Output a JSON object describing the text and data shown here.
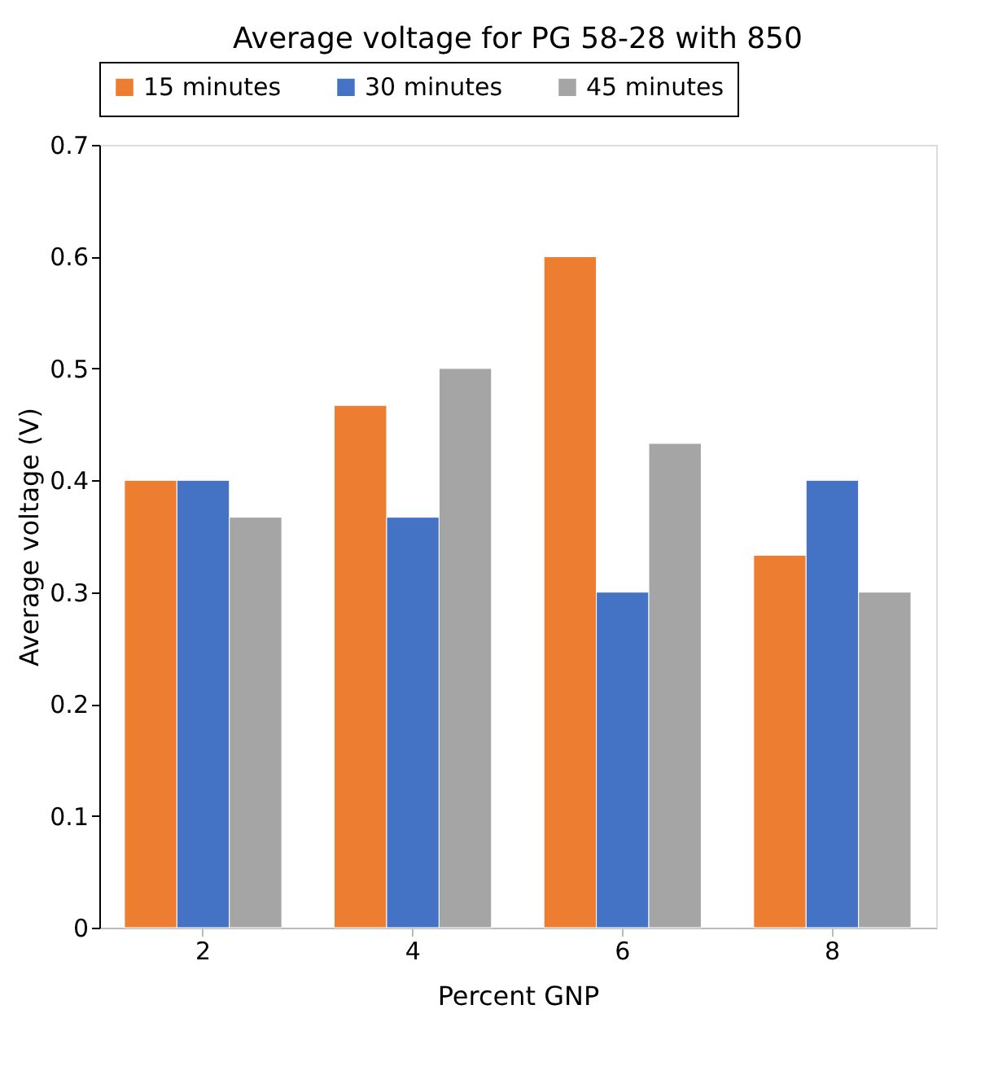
{
  "chart_data": {
    "type": "bar",
    "title": "Average voltage for PG 58-28 with 850",
    "xlabel": "Percent GNP",
    "ylabel": "Average voltage (V)",
    "categories": [
      "2",
      "4",
      "6",
      "8"
    ],
    "series": [
      {
        "name": "15 minutes",
        "color": "#ed7d31",
        "values": [
          0.4,
          0.467,
          0.6,
          0.333
        ]
      },
      {
        "name": "30 minutes",
        "color": "#4472c4",
        "values": [
          0.4,
          0.367,
          0.3,
          0.4
        ]
      },
      {
        "name": "45 minutes",
        "color": "#a5a5a5",
        "values": [
          0.367,
          0.5,
          0.433,
          0.3
        ]
      }
    ],
    "ylim": [
      0,
      0.7
    ],
    "yticks": [
      0,
      0.1,
      0.2,
      0.3,
      0.4,
      0.5,
      0.6,
      0.7
    ],
    "grid": false,
    "legend": "top"
  }
}
